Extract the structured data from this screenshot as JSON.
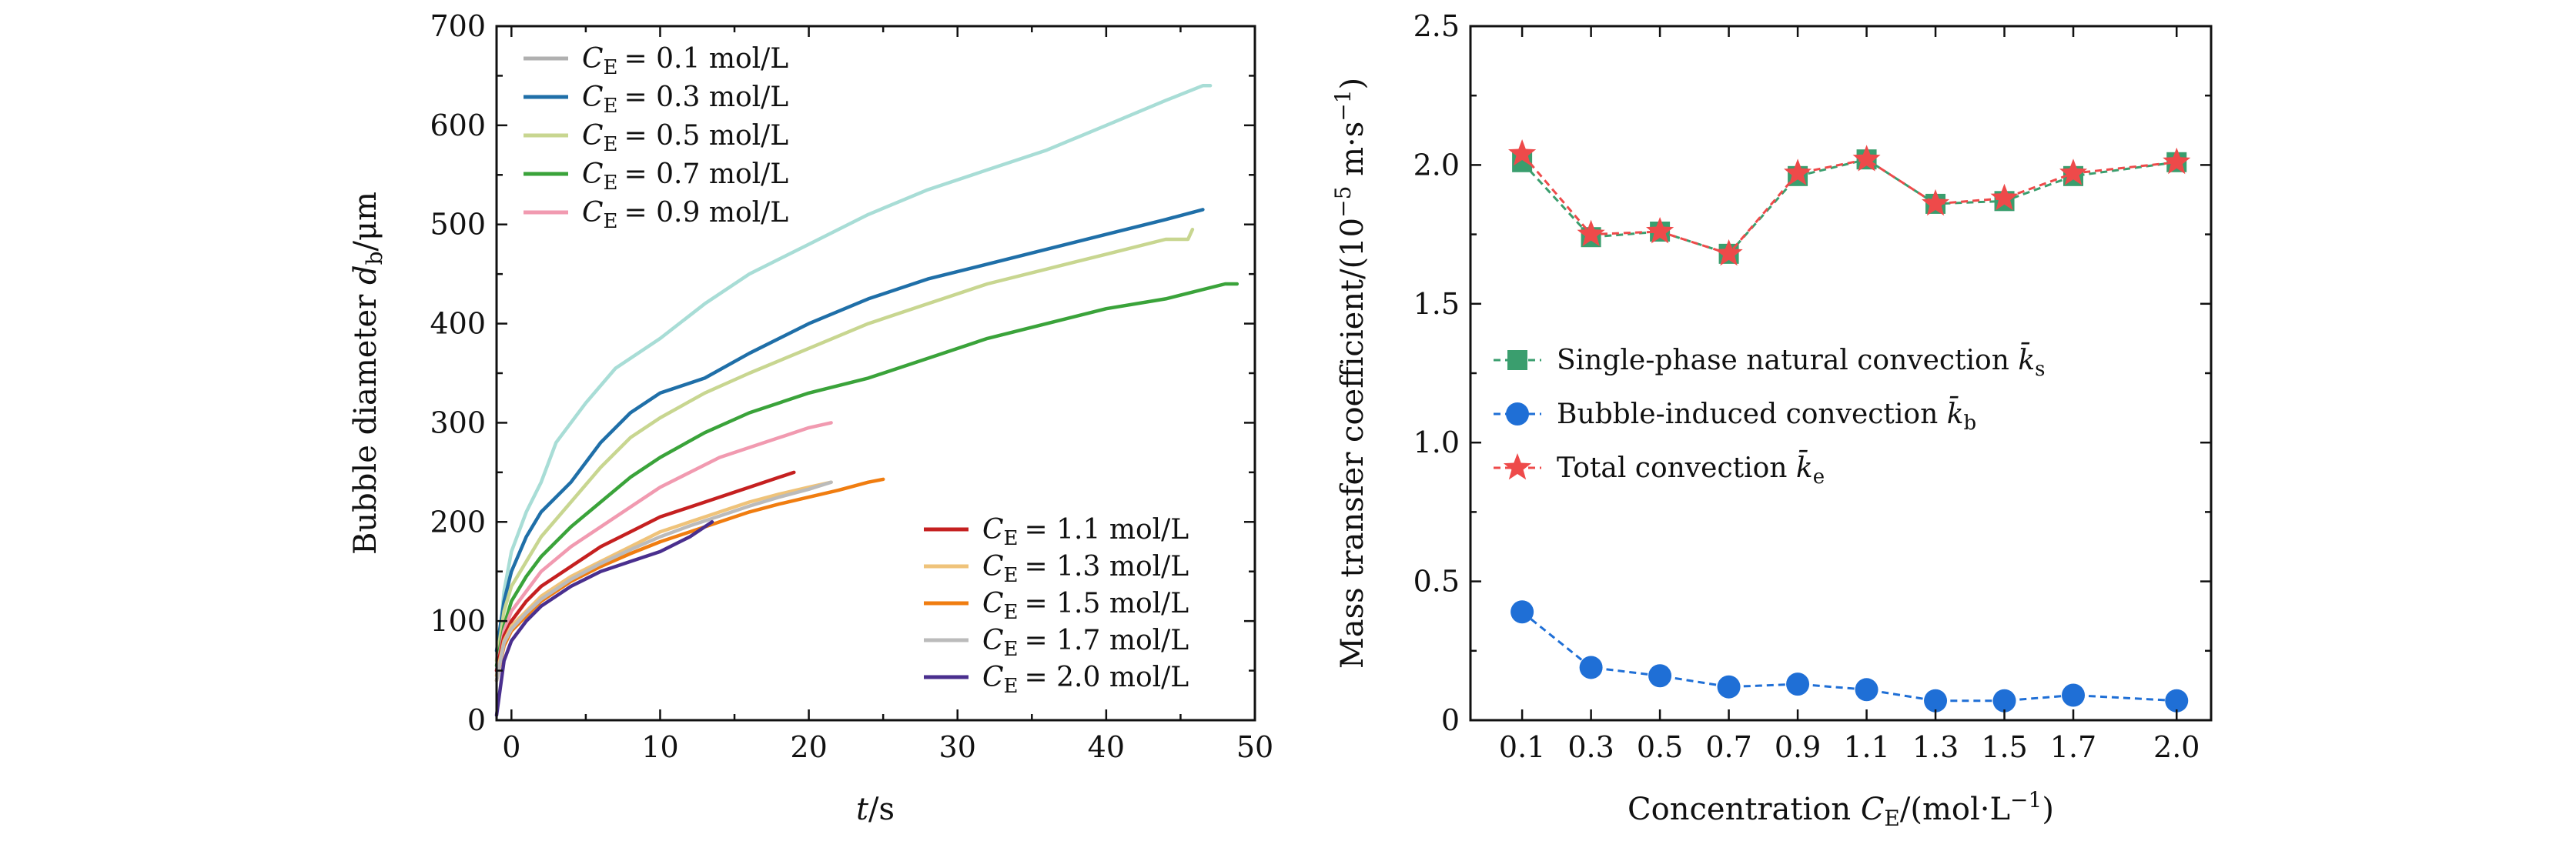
{
  "chart_data": [
    {
      "type": "line",
      "xlabel": "t/s",
      "ylabel": "Bubble diameter d_b/μm",
      "xlim": [
        -1,
        50
      ],
      "ylim": [
        0,
        700
      ],
      "xticks": [
        0,
        10,
        20,
        30,
        40,
        50
      ],
      "yticks": [
        0,
        100,
        200,
        300,
        400,
        500,
        600,
        700
      ],
      "legend_1_position": "top-left",
      "legend_2_position": "bottom-right",
      "series": [
        {
          "name": "C_E = 0.1 mol/L",
          "color": "#a8ddd6",
          "legend_color": "#b0b0b0",
          "legend_group": 1,
          "x": [
            -1,
            -0.5,
            0,
            1,
            2,
            3,
            5,
            7,
            10,
            13,
            16,
            20,
            24,
            28,
            32,
            36,
            40,
            44,
            46.5,
            47
          ],
          "y": [
            50,
            130,
            170,
            210,
            240,
            280,
            320,
            355,
            385,
            420,
            450,
            480,
            510,
            535,
            555,
            575,
            600,
            625,
            640,
            640
          ]
        },
        {
          "name": "C_E = 0.3 mol/L",
          "color": "#1f6fa8",
          "legend_group": 1,
          "x": [
            -1,
            -0.5,
            0,
            1,
            2,
            4,
            6,
            8,
            10,
            13,
            16,
            20,
            24,
            28,
            32,
            36,
            40,
            44,
            46.5
          ],
          "y": [
            70,
            120,
            150,
            185,
            210,
            240,
            280,
            310,
            330,
            345,
            370,
            400,
            425,
            445,
            460,
            475,
            490,
            505,
            515
          ]
        },
        {
          "name": "C_E = 0.5 mol/L",
          "color": "#c8d690",
          "legend_group": 1,
          "x": [
            -1,
            -0.5,
            0,
            1,
            2,
            4,
            6,
            8,
            10,
            13,
            16,
            20,
            24,
            28,
            32,
            36,
            40,
            44,
            45.5,
            45.8
          ],
          "y": [
            60,
            110,
            135,
            160,
            185,
            220,
            255,
            285,
            305,
            330,
            350,
            375,
            400,
            420,
            440,
            455,
            470,
            485,
            485,
            495
          ]
        },
        {
          "name": "C_E = 0.7 mol/L",
          "color": "#3aa33a",
          "legend_group": 1,
          "x": [
            -1,
            -0.5,
            0,
            1,
            2,
            4,
            6,
            8,
            10,
            13,
            16,
            20,
            24,
            28,
            32,
            36,
            40,
            44,
            48,
            48.8
          ],
          "y": [
            55,
            95,
            120,
            145,
            165,
            195,
            220,
            245,
            265,
            290,
            310,
            330,
            345,
            365,
            385,
            400,
            415,
            425,
            440,
            440
          ]
        },
        {
          "name": "C_E = 0.9 mol/L",
          "color": "#f19ab0",
          "legend_group": 1,
          "x": [
            -1,
            -0.5,
            0,
            1,
            2,
            4,
            6,
            8,
            10,
            12,
            14,
            16,
            18,
            20,
            21.5
          ],
          "y": [
            50,
            90,
            110,
            130,
            150,
            175,
            195,
            215,
            235,
            250,
            265,
            275,
            285,
            295,
            300
          ]
        },
        {
          "name": "C_E = 1.1 mol/L",
          "color": "#c52020",
          "legend_group": 2,
          "x": [
            -1,
            -0.5,
            0,
            1,
            2,
            4,
            6,
            8,
            10,
            12,
            14,
            16,
            18,
            19
          ],
          "y": [
            50,
            85,
            100,
            120,
            135,
            155,
            175,
            190,
            205,
            215,
            225,
            235,
            245,
            250
          ]
        },
        {
          "name": "C_E = 1.3 mol/L",
          "color": "#efc37a",
          "legend_group": 2,
          "x": [
            -1,
            -0.5,
            0,
            1,
            2,
            4,
            6,
            8,
            10,
            12,
            14,
            16,
            18,
            20,
            21.5
          ],
          "y": [
            45,
            80,
            95,
            110,
            125,
            145,
            160,
            175,
            190,
            200,
            210,
            220,
            228,
            235,
            240
          ]
        },
        {
          "name": "C_E = 1.5 mol/L",
          "color": "#f07d10",
          "legend_group": 2,
          "x": [
            -1,
            -0.5,
            0,
            1,
            2,
            4,
            6,
            8,
            10,
            12,
            14,
            16,
            18,
            20,
            22,
            24,
            25
          ],
          "y": [
            40,
            75,
            90,
            105,
            120,
            140,
            155,
            168,
            180,
            190,
            200,
            210,
            218,
            225,
            232,
            240,
            243
          ]
        },
        {
          "name": "C_E = 1.7 mol/L",
          "color": "#bbbbbb",
          "legend_group": 2,
          "x": [
            -1,
            -0.5,
            0,
            1,
            2,
            4,
            6,
            8,
            10,
            12,
            14,
            16,
            18,
            20,
            21.5
          ],
          "y": [
            40,
            78,
            92,
            108,
            122,
            142,
            158,
            172,
            185,
            196,
            206,
            216,
            225,
            233,
            240
          ]
        },
        {
          "name": "C_E = 2.0 mol/L",
          "color": "#4a2f8e",
          "legend_group": 2,
          "x": [
            -1,
            -0.5,
            0,
            1,
            2,
            4,
            6,
            8,
            10,
            12,
            13.5
          ],
          "y": [
            5,
            60,
            80,
            100,
            115,
            135,
            150,
            160,
            170,
            185,
            200
          ]
        }
      ]
    },
    {
      "type": "line",
      "xlabel": "Concentration C_E/(mol·L⁻¹)",
      "ylabel": "Mass transfer coefficient/(10⁻⁵ m·s⁻¹)",
      "xlim": [
        -0.05,
        2.1
      ],
      "ylim": [
        0,
        2.5
      ],
      "xticks": [
        0.1,
        0.3,
        0.5,
        0.7,
        0.9,
        1.1,
        1.3,
        1.5,
        1.7,
        2.0
      ],
      "xtick_labels": [
        "0.1",
        "0.3",
        "0.5",
        "0.7",
        "0.9",
        "1.1",
        "1.3",
        "1.5",
        "1.7",
        "2.0"
      ],
      "yticks": [
        0,
        0.5,
        1.0,
        1.5,
        2.0,
        2.5
      ],
      "ytick_labels": [
        "0",
        "0.5",
        "1.0",
        "1.5",
        "2.0",
        "2.5"
      ],
      "legend_position": "middle-left",
      "x": [
        0.1,
        0.3,
        0.5,
        0.7,
        0.9,
        1.1,
        1.3,
        1.5,
        1.7,
        2.0
      ],
      "series": [
        {
          "name": "Single-phase natural convection k̄_s",
          "color": "#3a9e6e",
          "marker": "square",
          "values": [
            2.01,
            1.74,
            1.76,
            1.68,
            1.96,
            2.02,
            1.86,
            1.87,
            1.96,
            2.01
          ]
        },
        {
          "name": "Bubble-induced convection k̄_b",
          "color": "#1f6fd6",
          "marker": "circle",
          "values": [
            0.39,
            0.19,
            0.16,
            0.12,
            0.13,
            0.11,
            0.07,
            0.07,
            0.09,
            0.07
          ]
        },
        {
          "name": "Total convection k̄_e",
          "color": "#ee4a4a",
          "marker": "star",
          "values": [
            2.04,
            1.75,
            1.76,
            1.68,
            1.97,
            2.02,
            1.86,
            1.88,
            1.97,
            2.01
          ]
        }
      ]
    }
  ],
  "chart_text": {
    "left_ylabel_main": "Bubble diameter ",
    "left_ylabel_var": "d",
    "left_ylabel_sub": "b",
    "left_ylabel_unit": "/μm",
    "left_xlabel_var": "t",
    "left_xlabel_unit": "/s",
    "right_ylabel_main": "Mass transfer coefficient/(10",
    "right_ylabel_exp": "−5",
    "right_ylabel_unit": " m·s",
    "right_ylabel_exp2": "−1",
    "right_ylabel_close": ")",
    "right_xlabel_main": "Concentration ",
    "right_xlabel_var": "C",
    "right_xlabel_sub": "E",
    "right_xlabel_unit": "/(mol·L",
    "right_xlabel_exp": "−1",
    "right_xlabel_close": ")",
    "legend_var": "C",
    "legend_sub": "E",
    "legend_values": [
      "= 0.1 mol/L",
      "= 0.3 mol/L",
      "= 0.5 mol/L",
      "= 0.7 mol/L",
      "= 0.9 mol/L",
      "= 1.1 mol/L",
      "= 1.3 mol/L",
      "= 1.5 mol/L",
      "= 1.7 mol/L",
      "= 2.0 mol/L"
    ],
    "right_legend": [
      {
        "text": "Single-phase natural convection ",
        "var": "k̄",
        "sub": "s"
      },
      {
        "text": "Bubble-induced convection ",
        "var": "k̄",
        "sub": "b"
      },
      {
        "text": "Total convection ",
        "var": "k̄",
        "sub": "e"
      }
    ]
  }
}
